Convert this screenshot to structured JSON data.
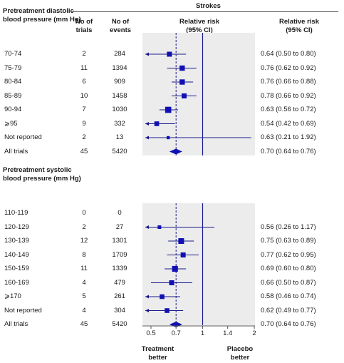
{
  "header": {
    "strokes": "Strokes",
    "dbp_title": "Pretreatment diastolic blood pressure (mm Hg)",
    "n_trials": "No of trials",
    "n_events": "No of events",
    "rr_ci_plot": "Relative risk (95% CI)",
    "rr_ci_text": "Relative risk (95% CI)"
  },
  "sbp_title": "Pretreatment systolic blood pressure (mm Hg)",
  "x_label_left": "Treatment better",
  "x_label_right": "Placebo better",
  "colors": {
    "marker": "#1010b4",
    "panel": "#ececec",
    "line": "#1a1a8c"
  },
  "chart_data": {
    "type": "forest",
    "x_axis": {
      "scale": "log",
      "range": [
        0.5,
        2
      ],
      "ticks": [
        "0.5",
        "0.7",
        "1",
        "1.4",
        "2"
      ],
      "null_line": 1,
      "reference_line": 0.7
    },
    "groups": [
      {
        "rows": [
          {
            "label": "70-74",
            "trials": "2",
            "events": "284",
            "rr": 0.64,
            "lo": 0.5,
            "hi": 0.8,
            "text": "0.64 (0.50 to 0.80)",
            "arrow_left": true,
            "size": 1.0
          },
          {
            "label": "75-79",
            "trials": "11",
            "events": "1394",
            "rr": 0.76,
            "lo": 0.62,
            "hi": 0.92,
            "text": "0.76 (0.62 to 0.92)",
            "arrow_left": false,
            "size": 1.1
          },
          {
            "label": "80-84",
            "trials": "6",
            "events": "909",
            "rr": 0.76,
            "lo": 0.66,
            "hi": 0.88,
            "text": "0.76 (0.66 to 0.88)",
            "arrow_left": false,
            "size": 1.1
          },
          {
            "label": "85-89",
            "trials": "10",
            "events": "1458",
            "rr": 0.78,
            "lo": 0.66,
            "hi": 0.92,
            "text": "0.78 (0.66 to 0.92)",
            "arrow_left": false,
            "size": 1.0
          },
          {
            "label": "90-94",
            "trials": "7",
            "events": "1030",
            "rr": 0.63,
            "lo": 0.56,
            "hi": 0.72,
            "text": "0.63 (0.56 to 0.72)",
            "arrow_left": false,
            "size": 1.4
          },
          {
            "label": "⩾95",
            "trials": "9",
            "events": "332",
            "rr": 0.54,
            "lo": 0.42,
            "hi": 0.69,
            "text": "0.54 (0.42 to 0.69)",
            "arrow_left": true,
            "size": 0.9
          },
          {
            "label": "Not reported",
            "trials": "2",
            "events": "13",
            "rr": 0.63,
            "lo": 0.21,
            "hi": 1.92,
            "text": "0.63 (0.21 to 1.92)",
            "arrow_left": true,
            "size": 0.35
          }
        ],
        "total": {
          "label": "All trials",
          "trials": "45",
          "events": "5420",
          "rr": 0.7,
          "lo": 0.64,
          "hi": 0.76,
          "text": "0.70 (0.64 to 0.76)"
        }
      },
      {
        "rows": [
          {
            "label": "110-119",
            "trials": "0",
            "events": "0",
            "rr": null,
            "lo": null,
            "hi": null,
            "text": "",
            "arrow_left": false,
            "size": 0
          },
          {
            "label": "120-129",
            "trials": "2",
            "events": "27",
            "rr": 0.56,
            "lo": 0.26,
            "hi": 1.17,
            "text": "0.56 (0.26 to 1.17)",
            "arrow_left": true,
            "size": 0.5
          },
          {
            "label": "130-139",
            "trials": "12",
            "events": "1301",
            "rr": 0.75,
            "lo": 0.63,
            "hi": 0.89,
            "text": "0.75 (0.63 to 0.89)",
            "arrow_left": false,
            "size": 1.25
          },
          {
            "label": "140-149",
            "trials": "8",
            "events": "1709",
            "rr": 0.77,
            "lo": 0.62,
            "hi": 0.95,
            "text": "0.77 (0.62 to 0.95)",
            "arrow_left": false,
            "size": 1.0
          },
          {
            "label": "150-159",
            "trials": "11",
            "events": "1339",
            "rr": 0.69,
            "lo": 0.6,
            "hi": 0.8,
            "text": "0.69 (0.60 to 0.80)",
            "arrow_left": false,
            "size": 1.3
          },
          {
            "label": "160-169",
            "trials": "4",
            "events": "479",
            "rr": 0.66,
            "lo": 0.5,
            "hi": 0.87,
            "text": "0.66 (0.50 to 0.87)",
            "arrow_left": false,
            "size": 1.0
          },
          {
            "label": "⩾170",
            "trials": "5",
            "events": "261",
            "rr": 0.58,
            "lo": 0.46,
            "hi": 0.74,
            "text": "0.58 (0.46 to 0.74)",
            "arrow_left": true,
            "size": 0.9
          },
          {
            "label": "Not reported",
            "trials": "4",
            "events": "304",
            "rr": 0.62,
            "lo": 0.49,
            "hi": 0.77,
            "text": "0.62 (0.49 to 0.77)",
            "arrow_left": true,
            "size": 0.9
          }
        ],
        "total": {
          "label": "All trials",
          "trials": "45",
          "events": "5420",
          "rr": 0.7,
          "lo": 0.64,
          "hi": 0.76,
          "text": "0.70 (0.64 to 0.76)"
        }
      }
    ]
  }
}
